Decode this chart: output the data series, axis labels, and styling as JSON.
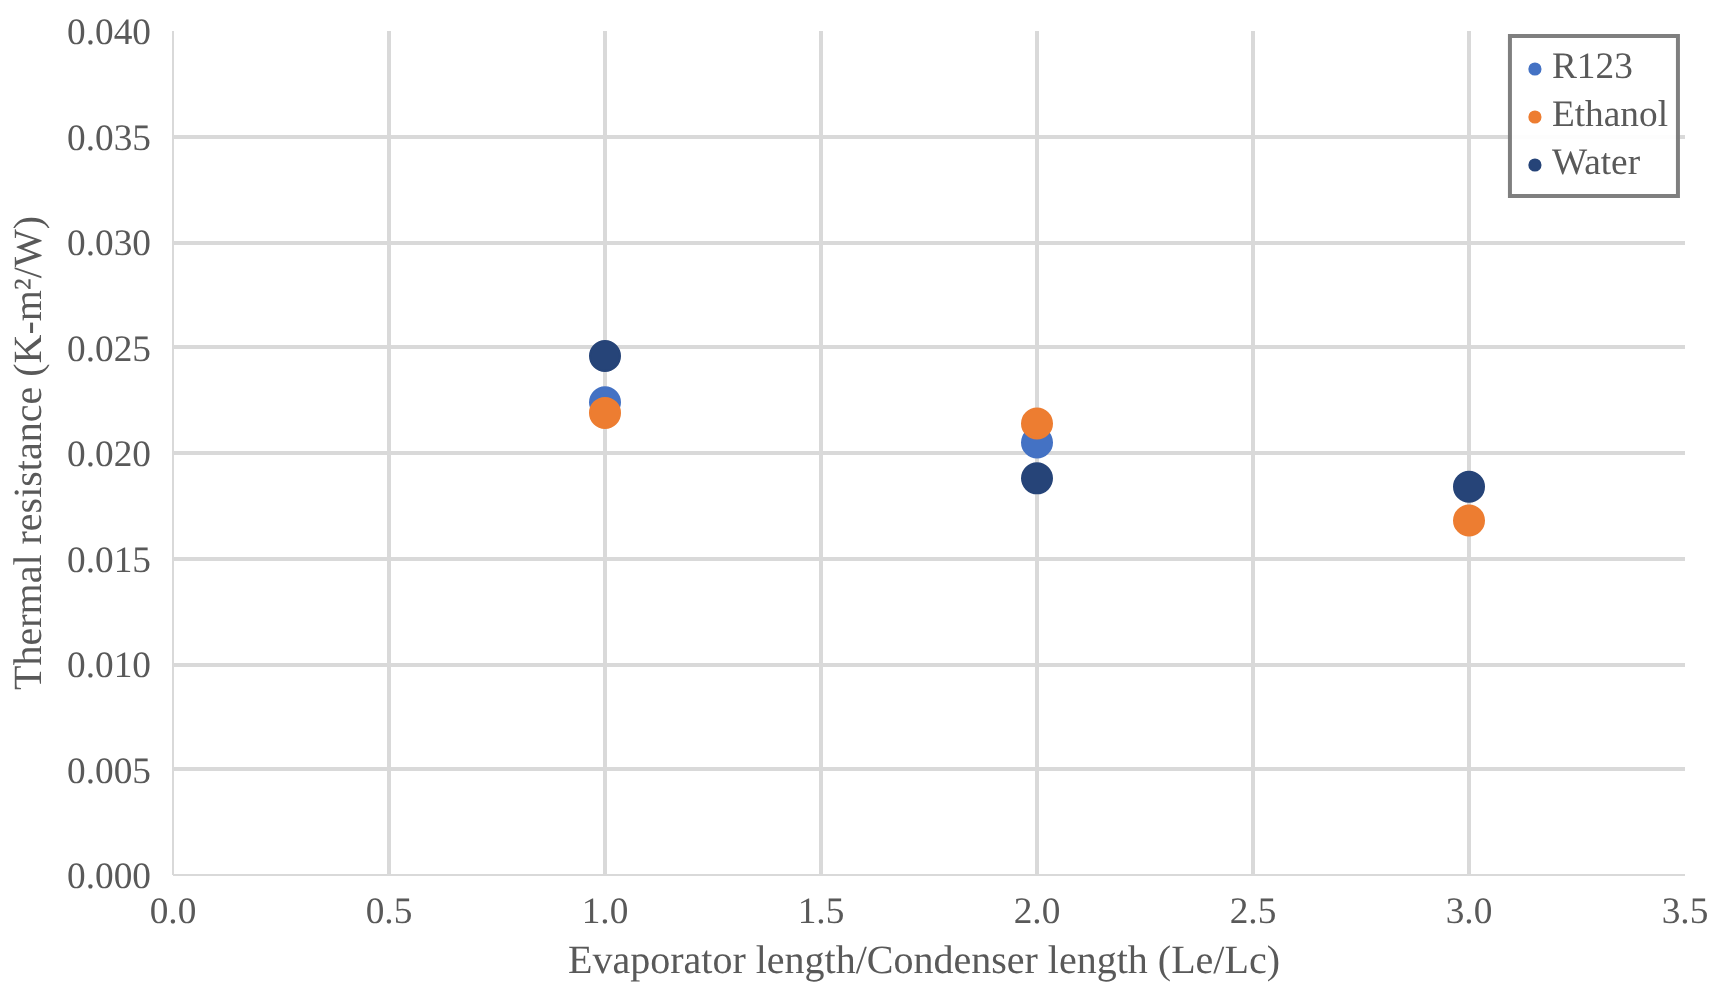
{
  "chart_data": {
    "type": "scatter",
    "xlabel": "Evaporator length/Condenser length  (Le/Lc)",
    "ylabel": "Thermal resistance (K-m²/W)",
    "x": [
      1,
      2,
      3
    ],
    "series": [
      {
        "name": "R123",
        "color": "#4472c4",
        "values": [
          0.0224,
          0.0205,
          null
        ]
      },
      {
        "name": "Ethanol",
        "color": "#ed7d31",
        "values": [
          0.0219,
          0.0214,
          0.0168
        ]
      },
      {
        "name": "Water",
        "color": "#264478",
        "values": [
          0.0246,
          0.0188,
          0.0184
        ]
      }
    ],
    "xlim": [
      0,
      3.5
    ],
    "xticks": [
      {
        "value": 0,
        "label": "0.0"
      },
      {
        "value": 0.5,
        "label": "0.5"
      },
      {
        "value": 1,
        "label": "1.0"
      },
      {
        "value": 1.5,
        "label": "1.5"
      },
      {
        "value": 2,
        "label": "2.0"
      },
      {
        "value": 2.5,
        "label": "2.5"
      },
      {
        "value": 3,
        "label": "3.0"
      },
      {
        "value": 3.5,
        "label": "3.5"
      }
    ],
    "ylim": [
      0,
      0.04
    ],
    "yticks": [
      {
        "value": 0,
        "label": "0.000"
      },
      {
        "value": 0.005,
        "label": "0.005"
      },
      {
        "value": 0.01,
        "label": "0.010"
      },
      {
        "value": 0.015,
        "label": "0.015"
      },
      {
        "value": 0.02,
        "label": "0.020"
      },
      {
        "value": 0.025,
        "label": "0.025"
      },
      {
        "value": 0.03,
        "label": "0.030"
      },
      {
        "value": 0.035,
        "label": "0.035"
      },
      {
        "value": 0.04,
        "label": "0.040"
      }
    ],
    "grid": true,
    "legend": "top right",
    "marker": "circle"
  }
}
